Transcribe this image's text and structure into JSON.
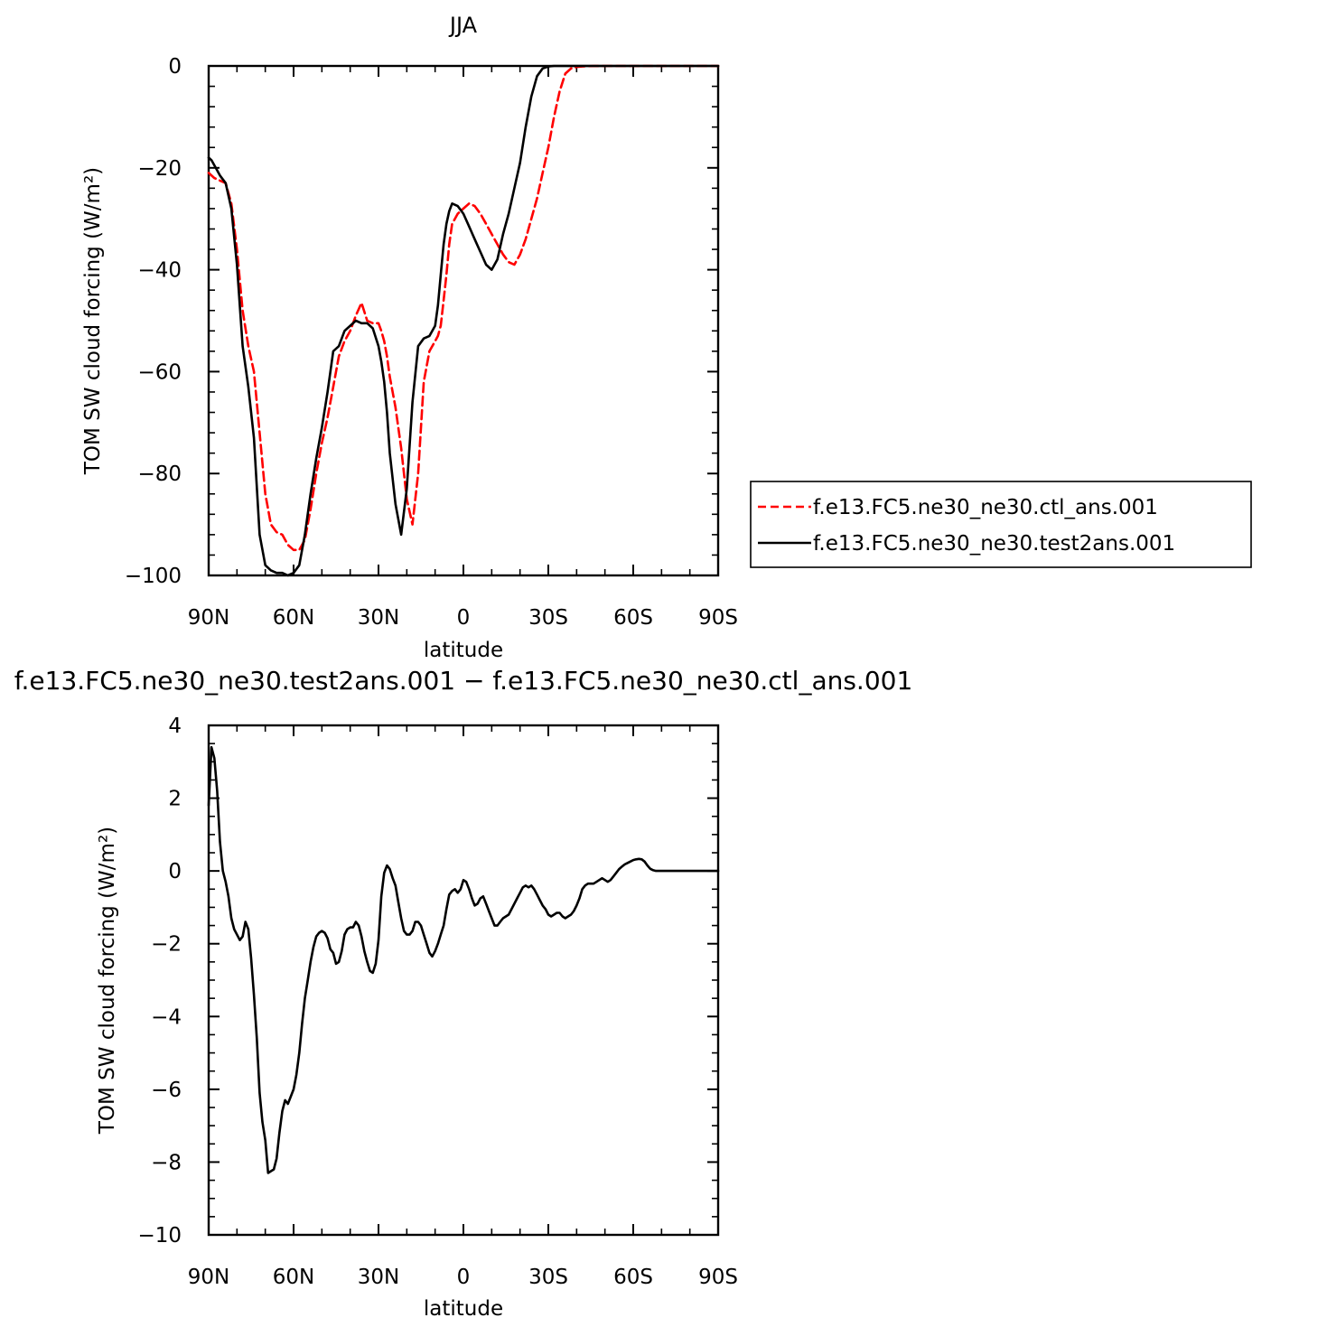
{
  "chart_data": [
    {
      "type": "line",
      "title": "JJA",
      "xlabel": "latitude",
      "ylabel": "TOM SW cloud forcing (W/m²)",
      "xlim": [
        90,
        -90
      ],
      "ylim": [
        -100,
        0
      ],
      "xticks": [
        {
          "value": 90,
          "label": "90N"
        },
        {
          "value": 60,
          "label": "60N"
        },
        {
          "value": 30,
          "label": "30N"
        },
        {
          "value": 0,
          "label": "0"
        },
        {
          "value": -30,
          "label": "30S"
        },
        {
          "value": -60,
          "label": "60S"
        },
        {
          "value": -90,
          "label": "90S"
        }
      ],
      "yticks": [
        {
          "value": 0,
          "label": "0"
        },
        {
          "value": -20,
          "label": "−20"
        },
        {
          "value": -40,
          "label": "−40"
        },
        {
          "value": -60,
          "label": "−60"
        },
        {
          "value": -80,
          "label": "−80"
        },
        {
          "value": -100,
          "label": "−100"
        }
      ],
      "legend": {
        "position": "right"
      },
      "series": [
        {
          "name": "f.e13.FC5.ne30_ne30.ctl_ans.001",
          "color": "#ff0000",
          "dash": "dashed",
          "x": [
            90,
            88,
            86,
            84,
            82,
            80,
            78,
            76,
            74,
            72,
            70,
            68,
            66,
            64,
            62,
            60,
            58,
            56,
            54,
            52,
            50,
            48,
            46,
            44,
            42,
            40,
            38,
            36,
            34,
            32,
            30,
            29,
            28,
            27,
            26,
            24,
            22,
            20,
            18,
            16,
            14,
            12,
            10,
            9,
            8,
            7,
            6,
            5,
            4,
            2,
            0,
            -2,
            -4,
            -6,
            -8,
            -10,
            -12,
            -14,
            -16,
            -18,
            -20,
            -22,
            -24,
            -26,
            -28,
            -30,
            -32,
            -34,
            -36,
            -38,
            -40,
            -42,
            -44,
            -46,
            -48,
            -50,
            -52,
            -54,
            -56,
            -58,
            -60,
            -62,
            -64,
            -66,
            -68,
            -70,
            -72,
            -75,
            -80,
            -85,
            -90
          ],
          "y": [
            -21,
            -22,
            -22.5,
            -23,
            -27,
            -36,
            -48,
            -55,
            -60,
            -72,
            -84,
            -90,
            -91.5,
            -92,
            -94,
            -95,
            -95,
            -93,
            -87,
            -80,
            -74,
            -69,
            -63,
            -57,
            -54,
            -52,
            -49,
            -46.5,
            -50,
            -50.5,
            -50.5,
            -52,
            -54,
            -57,
            -61,
            -67,
            -75,
            -85,
            -90,
            -80,
            -62,
            -56,
            -54,
            -53,
            -51,
            -46,
            -41,
            -35,
            -31,
            -29,
            -28,
            -27,
            -27.5,
            -29,
            -31,
            -33,
            -35,
            -37,
            -38.5,
            -39,
            -37,
            -34,
            -30,
            -26,
            -21,
            -16,
            -10,
            -5,
            -1.5,
            -0.5,
            -0.2,
            -0.1,
            -0.05,
            -0.02,
            0,
            0,
            0,
            0,
            0,
            0,
            0,
            0,
            0,
            0,
            0,
            0,
            0,
            0,
            0,
            0,
            0
          ]
        },
        {
          "name": "f.e13.FC5.ne30_ne30.test2ans.001",
          "color": "#000000",
          "dash": "solid",
          "x": [
            90,
            89,
            88,
            87,
            86,
            84,
            82,
            80,
            78,
            76,
            74,
            72,
            70,
            68,
            66,
            64,
            62,
            60,
            58,
            56,
            54,
            52,
            50,
            48,
            46,
            44,
            42,
            40,
            38,
            36,
            34,
            32,
            30,
            29,
            28,
            27,
            26,
            24,
            22,
            20,
            18,
            16,
            14,
            12,
            10,
            9,
            8,
            7,
            6,
            5,
            4,
            2,
            0,
            -2,
            -4,
            -6,
            -8,
            -10,
            -12,
            -14,
            -16,
            -18,
            -20,
            -22,
            -24,
            -26,
            -28,
            -30,
            -32,
            -34,
            -36,
            -38,
            -40,
            -42,
            -44,
            -46,
            -48,
            -50,
            -52,
            -54,
            -56,
            -58,
            -60,
            -62,
            -64,
            -66,
            -68,
            -70,
            -72,
            -75,
            -80,
            -85,
            -90
          ],
          "y": [
            -18,
            -18.5,
            -19.5,
            -20.5,
            -21.5,
            -23,
            -28,
            -39,
            -55,
            -63,
            -73,
            -92,
            -98,
            -99,
            -99.5,
            -99.5,
            -100.5,
            -99.5,
            -98,
            -92,
            -84,
            -77,
            -71,
            -64,
            -56,
            -55,
            -52,
            -51,
            -50,
            -50.5,
            -50.5,
            -51.5,
            -55,
            -58,
            -62,
            -68,
            -76,
            -86,
            -92,
            -83,
            -66,
            -55,
            -53.5,
            -53,
            -51,
            -47,
            -41,
            -35,
            -31,
            -28.5,
            -27,
            -27.5,
            -29,
            -31.5,
            -34,
            -36.5,
            -39,
            -40,
            -38,
            -33,
            -29,
            -24,
            -19,
            -12,
            -6,
            -2,
            -0.5,
            -0.1,
            0,
            0,
            0,
            0,
            0,
            0,
            0,
            0,
            0,
            0,
            0,
            0,
            0,
            0,
            0,
            0,
            0,
            0,
            0,
            0,
            0,
            0,
            0,
            0,
            0
          ]
        }
      ]
    },
    {
      "type": "line",
      "title": "f.e13.FC5.ne30_ne30.test2ans.001 − f.e13.FC5.ne30_ne30.ctl_ans.001",
      "xlabel": "latitude",
      "ylabel": "TOM SW cloud forcing (W/m²)",
      "xlim": [
        90,
        -90
      ],
      "ylim": [
        -10,
        4
      ],
      "xticks": [
        {
          "value": 90,
          "label": "90N"
        },
        {
          "value": 60,
          "label": "60N"
        },
        {
          "value": 30,
          "label": "30N"
        },
        {
          "value": 0,
          "label": "0"
        },
        {
          "value": -30,
          "label": "30S"
        },
        {
          "value": -60,
          "label": "60S"
        },
        {
          "value": -90,
          "label": "90S"
        }
      ],
      "yticks": [
        {
          "value": 4,
          "label": "4"
        },
        {
          "value": 2,
          "label": "2"
        },
        {
          "value": 0,
          "label": "0"
        },
        {
          "value": -2,
          "label": "−2"
        },
        {
          "value": -4,
          "label": "−4"
        },
        {
          "value": -6,
          "label": "−6"
        },
        {
          "value": -8,
          "label": "−8"
        },
        {
          "value": -10,
          "label": "−10"
        }
      ],
      "series": [
        {
          "color": "#000000",
          "dash": "solid",
          "x": [
            90,
            89,
            88,
            87,
            86,
            85,
            84,
            83,
            82,
            81,
            79,
            78,
            77,
            76,
            75,
            74,
            73,
            72,
            71,
            70,
            69,
            68,
            67,
            66,
            65,
            64,
            63,
            62,
            61,
            60,
            59,
            58,
            57,
            56,
            55,
            54,
            53,
            52,
            51,
            50,
            49,
            48,
            47,
            46,
            45,
            44,
            43,
            42,
            41,
            40,
            39,
            38,
            37,
            36,
            35,
            34,
            33,
            32,
            31,
            30,
            29,
            28,
            27,
            26,
            25,
            24,
            23,
            22,
            21,
            20,
            19,
            18,
            17,
            16,
            15,
            14,
            13,
            12,
            11,
            10,
            9,
            8,
            7,
            6,
            5,
            4,
            3,
            2,
            1,
            0,
            -1,
            -2,
            -3,
            -4,
            -5,
            -6,
            -7,
            -8,
            -9,
            -10,
            -11,
            -12,
            -13,
            -14,
            -15,
            -16,
            -17,
            -18,
            -19,
            -20,
            -21,
            -22,
            -23,
            -24,
            -25,
            -26,
            -27,
            -28,
            -29,
            -30,
            -31,
            -32,
            -33,
            -34,
            -35,
            -36,
            -37,
            -38,
            -39,
            -40,
            -41,
            -42,
            -43,
            -44,
            -45,
            -46,
            -47,
            -48,
            -49,
            -50,
            -51,
            -52,
            -53,
            -54,
            -55,
            -56,
            -57,
            -58,
            -59,
            -60,
            -61,
            -62,
            -63,
            -64,
            -65,
            -66,
            -67,
            -68,
            -70,
            -75,
            -80,
            -85,
            -90
          ],
          "y": [
            1.8,
            3.4,
            3.1,
            2.2,
            0.8,
            0,
            -0.3,
            -0.7,
            -1.3,
            -1.6,
            -1.9,
            -1.8,
            -1.4,
            -1.6,
            -2.4,
            -3.4,
            -4.6,
            -6.1,
            -6.9,
            -7.4,
            -8.3,
            -8.25,
            -8.2,
            -7.9,
            -7.2,
            -6.6,
            -6.3,
            -6.4,
            -6.2,
            -6.0,
            -5.6,
            -5.0,
            -4.2,
            -3.5,
            -3.0,
            -2.5,
            -2.1,
            -1.8,
            -1.7,
            -1.65,
            -1.7,
            -1.85,
            -2.15,
            -2.25,
            -2.55,
            -2.5,
            -2.2,
            -1.75,
            -1.6,
            -1.55,
            -1.55,
            -1.4,
            -1.5,
            -1.8,
            -2.2,
            -2.5,
            -2.75,
            -2.8,
            -2.55,
            -1.9,
            -0.7,
            -0.05,
            0.15,
            0.05,
            -0.2,
            -0.4,
            -0.85,
            -1.3,
            -1.65,
            -1.75,
            -1.75,
            -1.65,
            -1.4,
            -1.4,
            -1.5,
            -1.75,
            -2.0,
            -2.25,
            -2.35,
            -2.2,
            -2.0,
            -1.75,
            -1.5,
            -1.05,
            -0.65,
            -0.55,
            -0.5,
            -0.6,
            -0.5,
            -0.25,
            -0.3,
            -0.5,
            -0.75,
            -0.95,
            -0.9,
            -0.75,
            -0.7,
            -0.9,
            -1.1,
            -1.3,
            -1.5,
            -1.5,
            -1.4,
            -1.3,
            -1.25,
            -1.2,
            -1.05,
            -0.9,
            -0.75,
            -0.6,
            -0.45,
            -0.4,
            -0.45,
            -0.4,
            -0.5,
            -0.65,
            -0.8,
            -0.95,
            -1.05,
            -1.2,
            -1.25,
            -1.2,
            -1.15,
            -1.15,
            -1.25,
            -1.3,
            -1.25,
            -1.2,
            -1.1,
            -0.95,
            -0.75,
            -0.5,
            -0.4,
            -0.35,
            -0.35,
            -0.35,
            -0.3,
            -0.25,
            -0.2,
            -0.25,
            -0.3,
            -0.25,
            -0.15,
            -0.05,
            0.05,
            0.12,
            0.18,
            0.22,
            0.26,
            0.3,
            0.32,
            0.33,
            0.32,
            0.26,
            0.15,
            0.06,
            0.02,
            0,
            0,
            0,
            0,
            0,
            0
          ]
        }
      ]
    }
  ]
}
